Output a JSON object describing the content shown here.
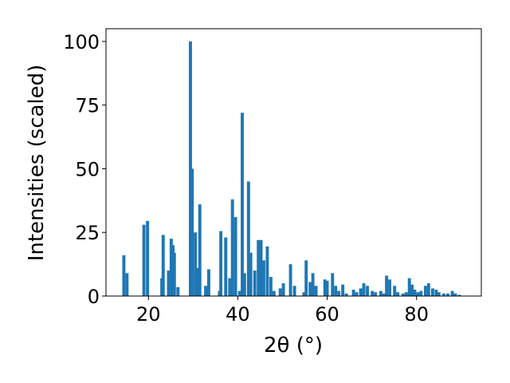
{
  "chart_data": {
    "type": "bar",
    "title": "",
    "xlabel": "2θ (°)",
    "ylabel": "Intensities (scaled)",
    "xlim": [
      10.5,
      94.5
    ],
    "ylim": [
      0,
      105
    ],
    "xticks": [
      20,
      40,
      60,
      80
    ],
    "yticks": [
      0,
      25,
      50,
      75,
      100
    ],
    "bar_color": "#1f77b4",
    "grid": false,
    "legend": "none",
    "bar_width": 0.7,
    "x": [
      14.5,
      15.2,
      19.0,
      19.8,
      23.0,
      23.3,
      24.5,
      25.1,
      25.5,
      25.8,
      26.6,
      29.4,
      29.8,
      30.5,
      30.9,
      31.5,
      32.8,
      33.5,
      35.9,
      36.2,
      37.3,
      38.2,
      38.8,
      39.5,
      40.4,
      41.0,
      41.5,
      42.4,
      42.9,
      43.8,
      44.6,
      45.2,
      45.8,
      46.6,
      47.4,
      48.1,
      49.5,
      50.2,
      51.8,
      52.7,
      54.8,
      55.3,
      56.2,
      56.8,
      57.5,
      59.5,
      60.0,
      61.2,
      61.9,
      62.6,
      63.5,
      64.3,
      65.9,
      66.6,
      67.5,
      68.2,
      69.0,
      70.1,
      70.8,
      72.0,
      72.7,
      73.3,
      74.0,
      75.1,
      75.8,
      77.0,
      77.7,
      78.4,
      79.0,
      79.6,
      80.3,
      81.0,
      82.0,
      82.7,
      83.6,
      84.4,
      85.0,
      86.1,
      87.0,
      88.0,
      88.7,
      89.6
    ],
    "values": [
      16,
      9,
      28,
      29.5,
      7,
      24,
      10,
      22.5,
      20,
      17,
      3.5,
      100,
      50,
      25,
      11,
      36,
      4,
      10.5,
      2,
      25.5,
      23,
      7,
      38,
      31,
      2,
      72,
      9,
      45,
      17,
      10,
      22,
      22,
      14,
      19.5,
      7.5,
      2,
      3,
      5,
      12.5,
      4,
      1.5,
      14,
      5.5,
      9,
      4,
      6.5,
      6,
      9,
      4,
      2,
      4.5,
      1,
      2.5,
      1.5,
      3,
      5,
      4,
      2,
      1.5,
      2,
      1,
      8,
      6.5,
      4,
      1.5,
      1,
      1.5,
      7,
      4.5,
      2.5,
      1.5,
      2,
      4,
      5,
      3,
      2.5,
      1.5,
      1,
      1,
      2,
      1,
      0.5
    ]
  }
}
